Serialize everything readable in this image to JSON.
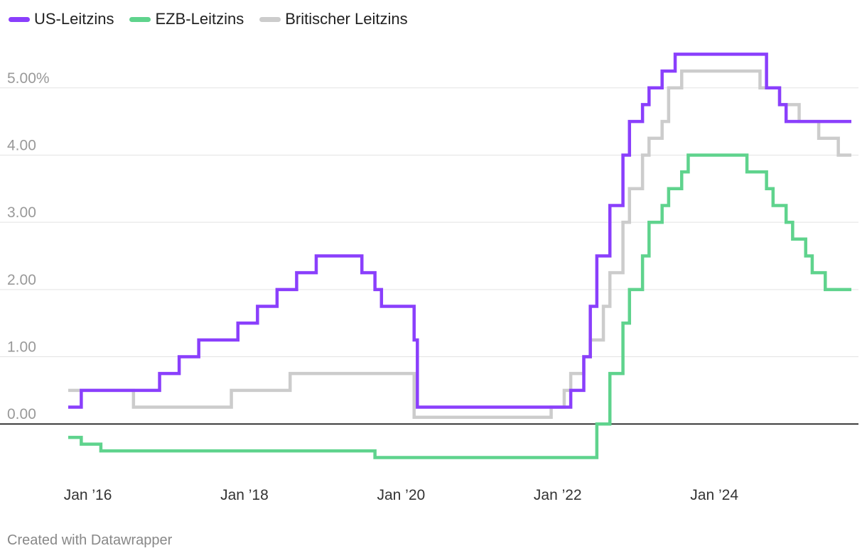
{
  "legend": [
    {
      "name": "US-Leitzins",
      "color": "#8a3ffc"
    },
    {
      "name": "EZB-Leitzins",
      "color": "#5fd38d"
    },
    {
      "name": "Britischer Leitzins",
      "color": "#cccccc"
    }
  ],
  "footer": "Created with Datawrapper",
  "chart_data": {
    "type": "line",
    "step": true,
    "xlabel": "",
    "ylabel": "",
    "xlim": [
      "2015-10",
      "2025-10"
    ],
    "ylim": [
      -0.6,
      5.8
    ],
    "y_ticks": [
      0,
      1,
      2,
      3,
      4,
      5
    ],
    "y_tick_labels": [
      "0.00",
      "1.00",
      "2.00",
      "3.00",
      "4.00",
      "5.00%"
    ],
    "x_ticks": [
      "2016-01",
      "2018-01",
      "2020-01",
      "2022-01",
      "2024-01"
    ],
    "x_tick_labels": [
      "Jan ’16",
      "Jan ’18",
      "Jan ’20",
      "Jan ’22",
      "Jan ’24"
    ],
    "zero_line": true,
    "grid": true,
    "series": [
      {
        "name": "Britischer Leitzins",
        "color": "#cccccc",
        "x": [
          "2015-10",
          "2016-08",
          "2017-11",
          "2018-08",
          "2020-03",
          "2021-01",
          "2021-12",
          "2022-02",
          "2022-03",
          "2022-05",
          "2022-06",
          "2022-08",
          "2022-09",
          "2022-11",
          "2022-12",
          "2023-02",
          "2023-03",
          "2023-05",
          "2023-06",
          "2023-08",
          "2024-08",
          "2024-11",
          "2025-02",
          "2025-05",
          "2025-08",
          "2025-10"
        ],
        "values": [
          0.5,
          0.25,
          0.5,
          0.75,
          0.1,
          0.1,
          0.25,
          0.5,
          0.75,
          1.0,
          1.25,
          1.75,
          2.25,
          3.0,
          3.5,
          4.0,
          4.25,
          4.5,
          5.0,
          5.25,
          5.0,
          4.75,
          4.5,
          4.25,
          4.0,
          4.0
        ]
      },
      {
        "name": "EZB-Leitzins",
        "color": "#5fd38d",
        "x": [
          "2015-10",
          "2015-12",
          "2016-03",
          "2019-09",
          "2022-07",
          "2022-09",
          "2022-11",
          "2022-12",
          "2023-02",
          "2023-03",
          "2023-05",
          "2023-06",
          "2023-08",
          "2023-09",
          "2024-06",
          "2024-09",
          "2024-10",
          "2024-12",
          "2025-01",
          "2025-03",
          "2025-04",
          "2025-06",
          "2025-10"
        ],
        "values": [
          -0.2,
          -0.3,
          -0.4,
          -0.5,
          0.0,
          0.75,
          1.5,
          2.0,
          2.5,
          3.0,
          3.25,
          3.5,
          3.75,
          4.0,
          3.75,
          3.5,
          3.25,
          3.0,
          2.75,
          2.5,
          2.25,
          2.0,
          2.0
        ]
      },
      {
        "name": "US-Leitzins",
        "color": "#8a3ffc",
        "x": [
          "2015-10",
          "2015-12",
          "2016-12",
          "2017-03",
          "2017-06",
          "2017-12",
          "2018-03",
          "2018-06",
          "2018-09",
          "2018-12",
          "2019-07",
          "2019-09",
          "2019-10",
          "2020-03",
          "2020-03-16",
          "2022-03",
          "2022-05",
          "2022-06",
          "2022-07",
          "2022-09",
          "2022-11",
          "2022-12",
          "2023-02",
          "2023-03",
          "2023-05",
          "2023-07",
          "2024-09",
          "2024-11",
          "2024-12",
          "2025-10"
        ],
        "values": [
          0.25,
          0.5,
          0.75,
          1.0,
          1.25,
          1.5,
          1.75,
          2.0,
          2.25,
          2.5,
          2.25,
          2.0,
          1.75,
          1.25,
          0.25,
          0.5,
          1.0,
          1.75,
          2.5,
          3.25,
          4.0,
          4.5,
          4.75,
          5.0,
          5.25,
          5.5,
          5.0,
          4.75,
          4.5,
          4.5
        ]
      }
    ]
  }
}
